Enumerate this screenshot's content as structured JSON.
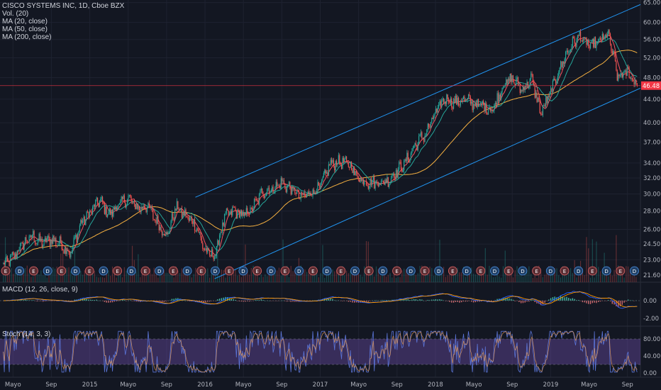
{
  "legend": {
    "title": "CISCO SYSTEMS INC, 1D, Cboe BZX",
    "volume": "Vol. (20)",
    "ma20": "MA (20, close)",
    "ma50": "MA (50, close)",
    "ma200": "MA (200, close)"
  },
  "panes": {
    "macd_label": "MACD (12, 26, close, 9)",
    "stoch_label": "Stoch (14, 3, 3)"
  },
  "colors": {
    "background": "#131722",
    "grid": "#1e2230",
    "price_line": "#f23645",
    "channel": "#2196f3",
    "ma20": "#f7525f",
    "ma50": "#26a69a",
    "ma200": "#f5b041",
    "up": "#26a69a",
    "down": "#ef5350",
    "stoch_band": "#7e57c2",
    "stoch_k": "#5b74d6",
    "stoch_d": "#e39a5a"
  },
  "events": {
    "badge_letters": [
      "E",
      "D"
    ]
  },
  "chart_data": {
    "type": "line",
    "title": "CISCO SYSTEMS INC, 1D, Cboe BZX",
    "x_ticks": [
      "Mayo",
      "Sep",
      "2015",
      "Mayo",
      "Sep",
      "2016",
      "Mayo",
      "Sep",
      "2017",
      "Mayo",
      "Sep",
      "2018",
      "Mayo",
      "Sep",
      "2019",
      "Mayo",
      "Sep"
    ],
    "y_ticks": [
      "65.00",
      "60.00",
      "56.00",
      "52.00",
      "48.00",
      "44.00",
      "40.00",
      "37.00",
      "34.00",
      "32.00",
      "30.00",
      "28.00",
      "26.00",
      "24.50",
      "23.00",
      "21.60"
    ],
    "y_scale": "log",
    "last_price": "46.48",
    "series": [
      {
        "name": "CISCO SYSTEMS INC",
        "x": [
          "2014-04",
          "2014-05",
          "2014-06",
          "2014-07",
          "2014-08",
          "2014-09",
          "2014-10",
          "2014-11",
          "2014-12",
          "2015-01",
          "2015-02",
          "2015-03",
          "2015-04",
          "2015-05",
          "2015-06",
          "2015-07",
          "2015-08",
          "2015-09",
          "2015-10",
          "2015-11",
          "2015-12",
          "2016-01",
          "2016-02",
          "2016-03",
          "2016-04",
          "2016-05",
          "2016-06",
          "2016-07",
          "2016-08",
          "2016-09",
          "2016-10",
          "2016-11",
          "2016-12",
          "2017-01",
          "2017-02",
          "2017-03",
          "2017-04",
          "2017-05",
          "2017-06",
          "2017-07",
          "2017-08",
          "2017-09",
          "2017-10",
          "2017-11",
          "2017-12",
          "2018-01",
          "2018-02",
          "2018-03",
          "2018-04",
          "2018-05",
          "2018-06",
          "2018-07",
          "2018-08",
          "2018-09",
          "2018-10",
          "2018-11",
          "2018-12",
          "2019-01",
          "2019-02",
          "2019-03",
          "2019-04",
          "2019-05",
          "2019-06",
          "2019-07",
          "2019-08",
          "2019-09",
          "2019-10"
        ],
        "values": [
          22.5,
          23.2,
          24.5,
          25.3,
          24.6,
          25.0,
          24.5,
          23.6,
          26.5,
          27.8,
          29.3,
          27.6,
          28.7,
          29.5,
          28.3,
          28.6,
          26.8,
          25.3,
          28.5,
          27.4,
          26.6,
          23.8,
          23.3,
          27.2,
          28.1,
          27.4,
          28.4,
          30.3,
          30.6,
          31.4,
          30.6,
          29.6,
          30.2,
          30.8,
          33.8,
          34.2,
          33.9,
          32.0,
          31.5,
          31.4,
          31.6,
          32.9,
          34.3,
          36.8,
          38.3,
          41.5,
          44.2,
          43.4,
          44.0,
          43.2,
          42.8,
          42.2,
          46.5,
          47.8,
          45.7,
          47.8,
          41.5,
          45.2,
          50.2,
          54.3,
          56.8,
          54.5,
          55.4,
          57.3,
          48.0,
          49.2,
          46.48
        ]
      }
    ]
  }
}
